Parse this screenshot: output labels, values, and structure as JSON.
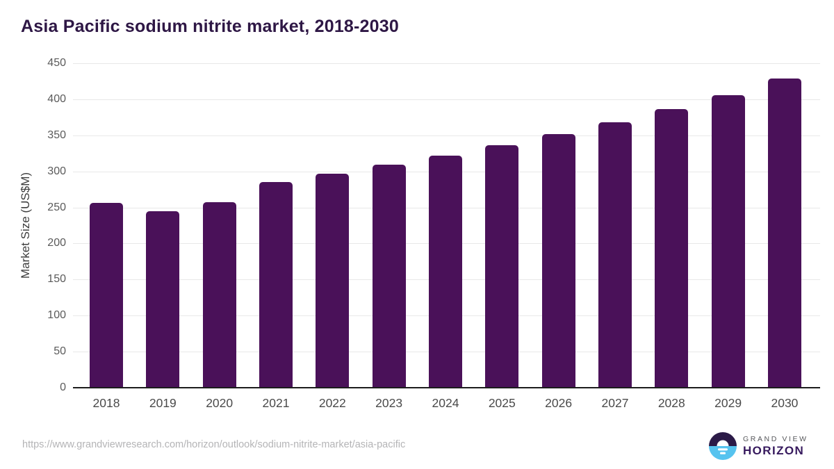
{
  "source_url": "https://www.grandviewresearch.com/horizon/outlook/sodium-nitrite-market/asia-pacific",
  "branding": {
    "line1": "GRAND VIEW",
    "line2": "HORIZON",
    "logo_icon": "horizon-sun-icon"
  },
  "colors": {
    "bar": "#4a1159",
    "title": "#2e1745",
    "axis_line": "#1c1c1c",
    "gridline": "#e8e8e8",
    "tick_label": "#5a5a5a",
    "url_text": "#b4b4b6",
    "logo_top": "#2b1a47",
    "logo_bottom": "#56c3ef"
  },
  "chart_data": {
    "type": "bar",
    "title": "Asia Pacific sodium nitrite market, 2018-2030",
    "categories": [
      "2018",
      "2019",
      "2020",
      "2021",
      "2022",
      "2023",
      "2024",
      "2025",
      "2026",
      "2027",
      "2028",
      "2029",
      "2030"
    ],
    "values": [
      256,
      245,
      257,
      285,
      297,
      309,
      322,
      336,
      352,
      368,
      386,
      406,
      429
    ],
    "xlabel": "",
    "ylabel": "Market Size (US$M)",
    "ylim": [
      0,
      450
    ],
    "ytick_step": 50,
    "grid": true,
    "legend": false,
    "bar_color": "#4a1159"
  }
}
